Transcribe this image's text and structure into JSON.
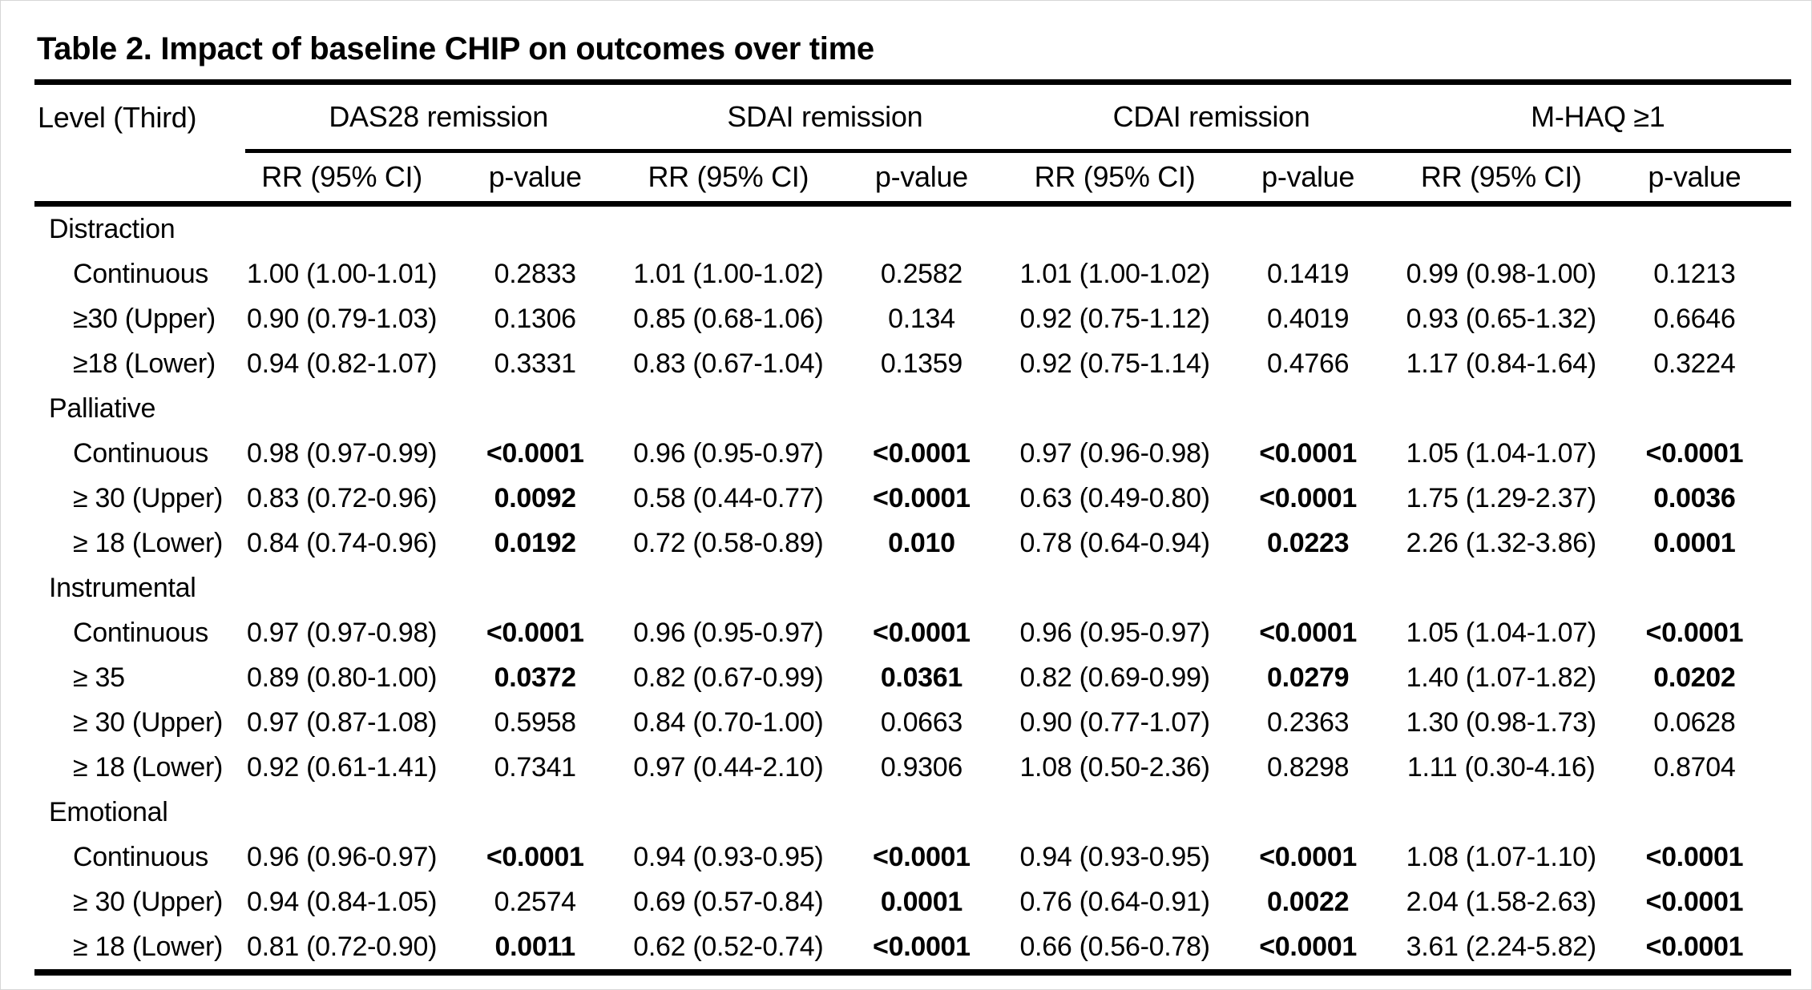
{
  "title": "Table 2. Impact of baseline CHIP on outcomes over time",
  "header": {
    "level_label": "Level (Third)",
    "groups": [
      "DAS28 remission",
      "SDAI remission",
      "CDAI remission",
      "M-HAQ ≥1"
    ],
    "sub_rr": "RR (95% CI)",
    "sub_p": "p-value"
  },
  "colors": {
    "text": "#000000",
    "background": "#ffffff",
    "rule": "#000000"
  },
  "sections": [
    {
      "name": "Distraction",
      "rows": [
        {
          "label": "Continuous",
          "values": [
            {
              "rr": "1.00 (1.00-1.01)",
              "p": "0.2833",
              "sig": false
            },
            {
              "rr": "1.01 (1.00-1.02)",
              "p": "0.2582",
              "sig": false
            },
            {
              "rr": "1.01 (1.00-1.02)",
              "p": "0.1419",
              "sig": false
            },
            {
              "rr": "0.99 (0.98-1.00)",
              "p": "0.1213",
              "sig": false
            }
          ]
        },
        {
          "label": "≥30 (Upper)",
          "values": [
            {
              "rr": "0.90 (0.79-1.03)",
              "p": "0.1306",
              "sig": false
            },
            {
              "rr": "0.85 (0.68-1.06)",
              "p": "0.134",
              "sig": false
            },
            {
              "rr": "0.92 (0.75-1.12)",
              "p": "0.4019",
              "sig": false
            },
            {
              "rr": "0.93 (0.65-1.32)",
              "p": "0.6646",
              "sig": false
            }
          ]
        },
        {
          "label": "≥18 (Lower)",
          "values": [
            {
              "rr": "0.94 (0.82-1.07)",
              "p": "0.3331",
              "sig": false
            },
            {
              "rr": "0.83 (0.67-1.04)",
              "p": "0.1359",
              "sig": false
            },
            {
              "rr": "0.92 (0.75-1.14)",
              "p": "0.4766",
              "sig": false
            },
            {
              "rr": "1.17 (0.84-1.64)",
              "p": "0.3224",
              "sig": false
            }
          ]
        }
      ]
    },
    {
      "name": "Palliative",
      "rows": [
        {
          "label": "Continuous",
          "values": [
            {
              "rr": "0.98 (0.97-0.99)",
              "p": "<0.0001",
              "sig": true
            },
            {
              "rr": "0.96 (0.95-0.97)",
              "p": "<0.0001",
              "sig": true
            },
            {
              "rr": "0.97 (0.96-0.98)",
              "p": "<0.0001",
              "sig": true
            },
            {
              "rr": "1.05 (1.04-1.07)",
              "p": "<0.0001",
              "sig": true
            }
          ]
        },
        {
          "label": "≥ 30 (Upper)",
          "values": [
            {
              "rr": "0.83 (0.72-0.96)",
              "p": "0.0092",
              "sig": true
            },
            {
              "rr": "0.58 (0.44-0.77)",
              "p": "<0.0001",
              "sig": true
            },
            {
              "rr": "0.63 (0.49-0.80)",
              "p": "<0.0001",
              "sig": true
            },
            {
              "rr": "1.75 (1.29-2.37)",
              "p": "0.0036",
              "sig": true
            }
          ]
        },
        {
          "label": "≥ 18 (Lower)",
          "values": [
            {
              "rr": "0.84 (0.74-0.96)",
              "p": "0.0192",
              "sig": true
            },
            {
              "rr": "0.72 (0.58-0.89)",
              "p": "0.010",
              "sig": true
            },
            {
              "rr": "0.78 (0.64-0.94)",
              "p": "0.0223",
              "sig": true
            },
            {
              "rr": "2.26 (1.32-3.86)",
              "p": "0.0001",
              "sig": true
            }
          ]
        }
      ]
    },
    {
      "name": "Instrumental",
      "rows": [
        {
          "label": "Continuous",
          "values": [
            {
              "rr": "0.97 (0.97-0.98)",
              "p": "<0.0001",
              "sig": true
            },
            {
              "rr": "0.96 (0.95-0.97)",
              "p": "<0.0001",
              "sig": true
            },
            {
              "rr": "0.96 (0.95-0.97)",
              "p": "<0.0001",
              "sig": true
            },
            {
              "rr": "1.05 (1.04-1.07)",
              "p": "<0.0001",
              "sig": true
            }
          ]
        },
        {
          "label": "≥ 35",
          "values": [
            {
              "rr": "0.89 (0.80-1.00)",
              "p": "0.0372",
              "sig": true
            },
            {
              "rr": "0.82 (0.67-0.99)",
              "p": "0.0361",
              "sig": true
            },
            {
              "rr": "0.82 (0.69-0.99)",
              "p": "0.0279",
              "sig": true
            },
            {
              "rr": "1.40 (1.07-1.82)",
              "p": "0.0202",
              "sig": true
            }
          ]
        },
        {
          "label": "≥ 30 (Upper)",
          "values": [
            {
              "rr": "0.97 (0.87-1.08)",
              "p": "0.5958",
              "sig": false
            },
            {
              "rr": "0.84 (0.70-1.00)",
              "p": "0.0663",
              "sig": false
            },
            {
              "rr": "0.90 (0.77-1.07)",
              "p": "0.2363",
              "sig": false
            },
            {
              "rr": "1.30 (0.98-1.73)",
              "p": "0.0628",
              "sig": false
            }
          ]
        },
        {
          "label": "≥ 18 (Lower)",
          "values": [
            {
              "rr": "0.92 (0.61-1.41)",
              "p": "0.7341",
              "sig": false
            },
            {
              "rr": "0.97 (0.44-2.10)",
              "p": "0.9306",
              "sig": false
            },
            {
              "rr": "1.08 (0.50-2.36)",
              "p": "0.8298",
              "sig": false
            },
            {
              "rr": "1.11 (0.30-4.16)",
              "p": "0.8704",
              "sig": false
            }
          ]
        }
      ]
    },
    {
      "name": "Emotional",
      "rows": [
        {
          "label": "Continuous",
          "values": [
            {
              "rr": "0.96 (0.96-0.97)",
              "p": "<0.0001",
              "sig": true
            },
            {
              "rr": "0.94 (0.93-0.95)",
              "p": "<0.0001",
              "sig": true
            },
            {
              "rr": "0.94 (0.93-0.95)",
              "p": "<0.0001",
              "sig": true
            },
            {
              "rr": "1.08 (1.07-1.10)",
              "p": "<0.0001",
              "sig": true
            }
          ]
        },
        {
          "label": "≥ 30 (Upper)",
          "values": [
            {
              "rr": "0.94 (0.84-1.05)",
              "p": "0.2574",
              "sig": false
            },
            {
              "rr": "0.69 (0.57-0.84)",
              "p": "0.0001",
              "sig": true
            },
            {
              "rr": "0.76 (0.64-0.91)",
              "p": "0.0022",
              "sig": true
            },
            {
              "rr": "2.04 (1.58-2.63)",
              "p": "<0.0001",
              "sig": true
            }
          ]
        },
        {
          "label": "≥ 18 (Lower)",
          "values": [
            {
              "rr": "0.81 (0.72-0.90)",
              "p": "0.0011",
              "sig": true
            },
            {
              "rr": "0.62 (0.52-0.74)",
              "p": "<0.0001",
              "sig": true
            },
            {
              "rr": "0.66 (0.56-0.78)",
              "p": "<0.0001",
              "sig": true
            },
            {
              "rr": "3.61 (2.24-5.82)",
              "p": "<0.0001",
              "sig": true
            }
          ]
        }
      ]
    }
  ]
}
